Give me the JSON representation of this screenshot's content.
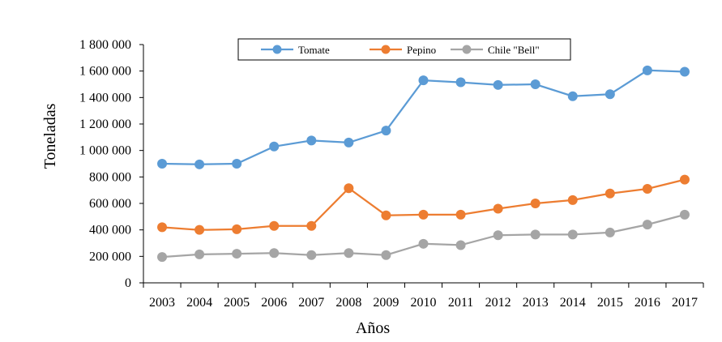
{
  "chart_data": {
    "type": "line",
    "title": "",
    "xlabel": "Años",
    "ylabel": "Toneladas",
    "categories": [
      "2003",
      "2004",
      "2005",
      "2006",
      "2007",
      "2008",
      "2009",
      "2010",
      "2011",
      "2012",
      "2013",
      "2014",
      "2015",
      "2016",
      "2017"
    ],
    "ylim": [
      0,
      1800000
    ],
    "y_ticks": [
      0,
      200000,
      400000,
      600000,
      800000,
      1000000,
      1200000,
      1400000,
      1600000,
      1800000
    ],
    "y_tick_labels": [
      "0",
      "200 000",
      "400 000",
      "600 000",
      "800 000",
      "1 000 000",
      "1 200 000",
      "1 400 000",
      "1 600 000",
      "1 800 000"
    ],
    "grid": false,
    "legend_position": "top",
    "series": [
      {
        "name": "Tomate",
        "color": "#5b9bd5",
        "values": [
          900000,
          895000,
          900000,
          1030000,
          1075000,
          1060000,
          1150000,
          1530000,
          1515000,
          1495000,
          1500000,
          1410000,
          1425000,
          1605000,
          1595000
        ]
      },
      {
        "name": "Pepino",
        "color": "#ed7d31",
        "values": [
          420000,
          400000,
          405000,
          430000,
          430000,
          715000,
          510000,
          515000,
          515000,
          560000,
          600000,
          625000,
          675000,
          710000,
          780000
        ]
      },
      {
        "name": "Chile \"Bell\"",
        "color": "#a5a5a5",
        "values": [
          195000,
          215000,
          220000,
          225000,
          210000,
          225000,
          210000,
          295000,
          285000,
          360000,
          365000,
          365000,
          380000,
          440000,
          515000
        ]
      }
    ]
  }
}
